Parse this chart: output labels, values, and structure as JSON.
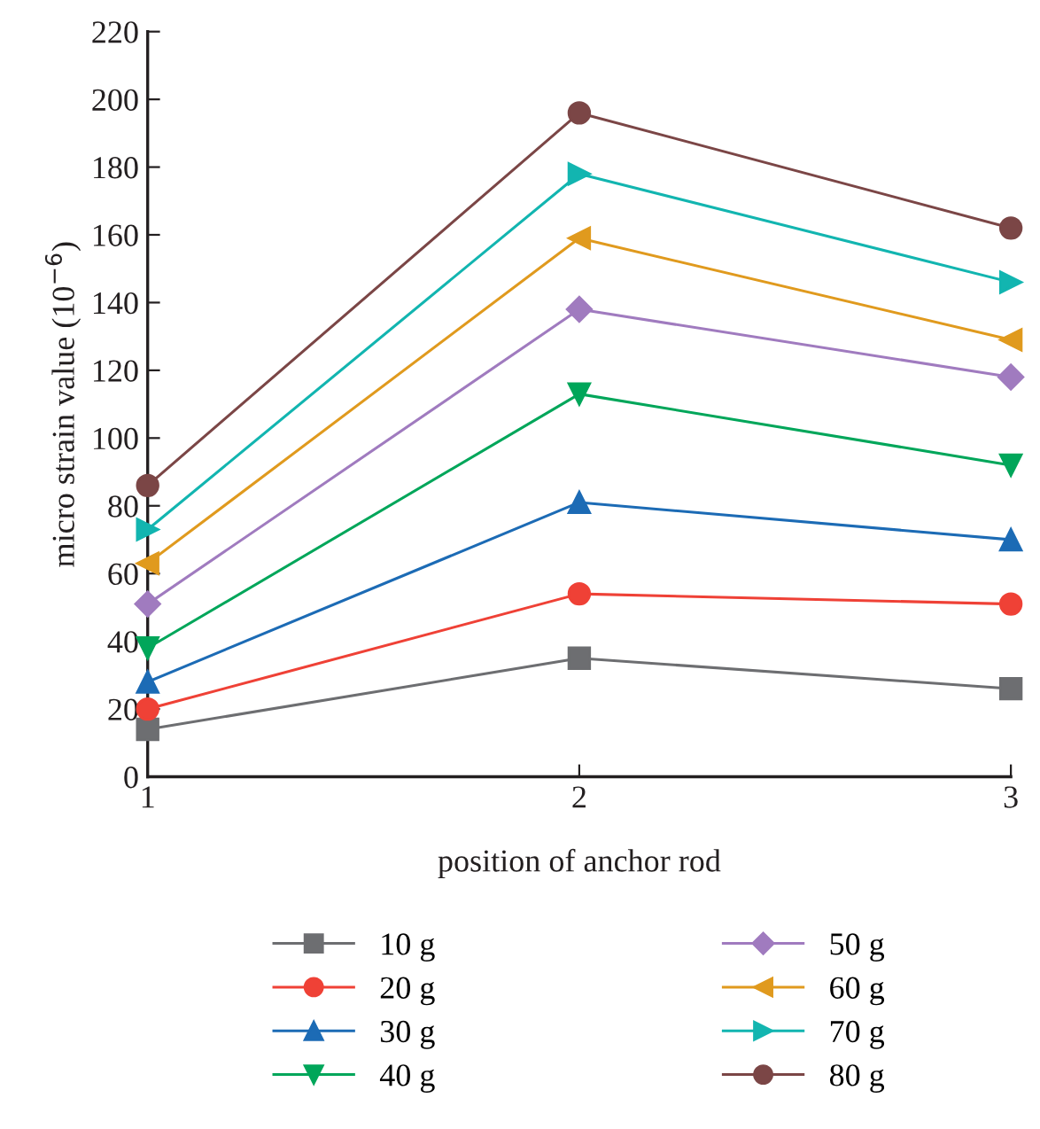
{
  "chart_data": {
    "type": "line",
    "xlabel": "position of anchor rod",
    "ylabel": "micro strain value (10$^{−6}$)",
    "x": [
      1,
      2,
      3
    ],
    "xlim": [
      1,
      3
    ],
    "xticks": [
      1,
      2,
      3
    ],
    "ylim": [
      0,
      220
    ],
    "yticks": [
      0,
      20,
      40,
      60,
      80,
      100,
      120,
      140,
      160,
      180,
      200,
      220
    ],
    "grid": false,
    "legend": "bottom",
    "line_style": "solid",
    "series": [
      {
        "name": "10 g",
        "color": "#6d6e71",
        "marker": "square",
        "values": [
          14,
          35,
          26
        ]
      },
      {
        "name": "20 g",
        "color": "#ef4136",
        "marker": "circle",
        "values": [
          20,
          54,
          51
        ]
      },
      {
        "name": "30 g",
        "color": "#1c6bb5",
        "marker": "triangle",
        "values": [
          28,
          81,
          70
        ]
      },
      {
        "name": "40 g",
        "color": "#00a65a",
        "marker": "triangle-down",
        "values": [
          38,
          113,
          92
        ]
      },
      {
        "name": "50 g",
        "color": "#a07bbf",
        "marker": "diamond",
        "values": [
          51,
          138,
          118
        ]
      },
      {
        "name": "60 g",
        "color": "#e09a1e",
        "marker": "triangle-left",
        "values": [
          63,
          159,
          129
        ]
      },
      {
        "name": "70 g",
        "color": "#12b5b0",
        "marker": "triangle-right",
        "values": [
          73,
          178,
          146
        ]
      },
      {
        "name": "80 g",
        "color": "#7b4646",
        "marker": "circle",
        "values": [
          86,
          196,
          162
        ]
      }
    ]
  }
}
